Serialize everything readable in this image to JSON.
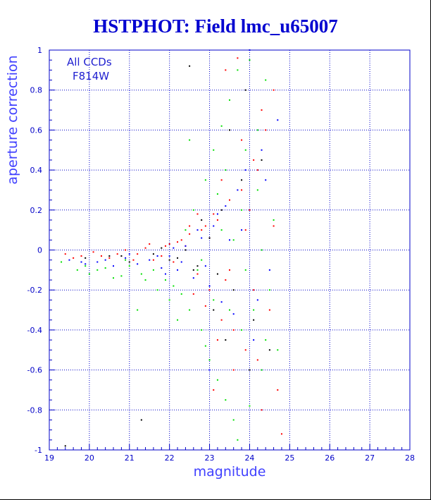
{
  "chart_data": {
    "type": "scatter",
    "title": "HSTPHOT: Field lmc_u65007",
    "xlabel": "magnitude",
    "ylabel": "aperture correction",
    "xlim": [
      19,
      28
    ],
    "ylim": [
      -1,
      1
    ],
    "x_ticks": [
      "19",
      "20",
      "21",
      "22",
      "23",
      "24",
      "25",
      "26",
      "27",
      "28"
    ],
    "y_ticks": [
      "-1",
      "-0.8",
      "-0.6",
      "-0.4",
      "-0.2",
      "0",
      "0.2",
      "0.4",
      "0.6",
      "0.8",
      "1"
    ],
    "grid": true,
    "annotations": [
      "All CCDs",
      "F814W"
    ],
    "series": [
      {
        "color": "#ff0000",
        "points": [
          [
            19.4,
            -0.02
          ],
          [
            19.8,
            -0.03
          ],
          [
            20.1,
            -0.01
          ],
          [
            20.5,
            -0.04
          ],
          [
            20.9,
            0.0
          ],
          [
            21.2,
            -0.02
          ],
          [
            21.4,
            0.01
          ],
          [
            21.6,
            -0.05
          ],
          [
            21.9,
            0.02
          ],
          [
            22.1,
            -0.06
          ],
          [
            22.3,
            0.05
          ],
          [
            22.5,
            0.08
          ],
          [
            22.7,
            -0.12
          ],
          [
            22.9,
            0.12
          ],
          [
            23.0,
            -0.2
          ],
          [
            23.2,
            0.15
          ],
          [
            23.3,
            -0.35
          ],
          [
            23.5,
            0.25
          ],
          [
            23.6,
            -0.4
          ],
          [
            23.8,
            0.3
          ],
          [
            23.9,
            -0.5
          ],
          [
            24.1,
            0.45
          ],
          [
            24.2,
            -0.55
          ],
          [
            24.4,
            0.6
          ],
          [
            24.6,
            0.8
          ],
          [
            24.7,
            -0.7
          ],
          [
            23.1,
            0.18
          ],
          [
            23.4,
            -0.15
          ],
          [
            22.8,
            0.1
          ],
          [
            22.6,
            -0.22
          ],
          [
            23.7,
            0.96
          ],
          [
            24.3,
            0.7
          ],
          [
            24.8,
            -0.92
          ],
          [
            23.6,
            -0.6
          ],
          [
            22.4,
            0.02
          ],
          [
            21.8,
            -0.03
          ],
          [
            20.7,
            -0.02
          ],
          [
            22.2,
            0.04
          ],
          [
            23.0,
            0.06
          ],
          [
            23.9,
            0.1
          ],
          [
            24.5,
            -0.3
          ],
          [
            24.0,
            0.2
          ],
          [
            23.3,
            0.35
          ],
          [
            22.9,
            -0.28
          ],
          [
            24.2,
            0.4
          ],
          [
            23.5,
            -0.1
          ],
          [
            22.0,
            0.03
          ],
          [
            21.1,
            -0.05
          ],
          [
            20.3,
            -0.03
          ],
          [
            19.6,
            -0.04
          ],
          [
            23.8,
            0.55
          ],
          [
            24.1,
            -0.2
          ],
          [
            23.2,
            -0.45
          ],
          [
            22.5,
            0.12
          ],
          [
            24.6,
            0.12
          ],
          [
            23.4,
            0.9
          ],
          [
            24.3,
            -0.8
          ],
          [
            22.7,
            0.18
          ],
          [
            23.1,
            -0.7
          ],
          [
            21.5,
            0.03
          ]
        ]
      },
      {
        "color": "#00e000",
        "points": [
          [
            19.3,
            -0.06
          ],
          [
            19.7,
            -0.1
          ],
          [
            20.0,
            -0.12
          ],
          [
            20.4,
            -0.09
          ],
          [
            20.8,
            -0.13
          ],
          [
            21.0,
            -0.08
          ],
          [
            21.3,
            -0.12
          ],
          [
            21.6,
            -0.1
          ],
          [
            21.9,
            -0.15
          ],
          [
            22.1,
            -0.18
          ],
          [
            22.3,
            -0.22
          ],
          [
            22.5,
            -0.3
          ],
          [
            22.6,
            0.2
          ],
          [
            22.8,
            -0.4
          ],
          [
            22.9,
            0.35
          ],
          [
            23.0,
            -0.55
          ],
          [
            23.1,
            0.5
          ],
          [
            23.2,
            -0.65
          ],
          [
            23.3,
            0.62
          ],
          [
            23.4,
            -0.75
          ],
          [
            23.5,
            0.75
          ],
          [
            23.6,
            -0.85
          ],
          [
            23.7,
            0.9
          ],
          [
            23.8,
            -0.4
          ],
          [
            23.9,
            0.5
          ],
          [
            24.0,
            0.95
          ],
          [
            24.1,
            -0.3
          ],
          [
            24.2,
            0.3
          ],
          [
            24.3,
            -0.6
          ],
          [
            24.4,
            0.85
          ],
          [
            24.5,
            -0.2
          ],
          [
            24.6,
            0.15
          ],
          [
            24.7,
            -0.5
          ],
          [
            20.9,
            -0.05
          ],
          [
            21.7,
            -0.2
          ],
          [
            22.2,
            -0.35
          ],
          [
            22.4,
            0.1
          ],
          [
            22.7,
            -0.1
          ],
          [
            23.3,
            0.1
          ],
          [
            23.6,
            0.05
          ],
          [
            23.9,
            -0.1
          ],
          [
            24.2,
            0.6
          ],
          [
            22.0,
            -0.25
          ],
          [
            21.4,
            -0.15
          ],
          [
            20.6,
            -0.14
          ],
          [
            19.9,
            -0.08
          ],
          [
            23.1,
            -0.25
          ],
          [
            22.9,
            -0.48
          ],
          [
            23.4,
            0.4
          ],
          [
            24.0,
            -0.78
          ],
          [
            23.8,
            0.2
          ],
          [
            22.5,
            0.55
          ],
          [
            21.2,
            -0.3
          ],
          [
            20.2,
            -0.1
          ],
          [
            24.3,
            0.0
          ],
          [
            23.5,
            -0.3
          ],
          [
            22.8,
            -0.05
          ],
          [
            23.2,
            0.28
          ],
          [
            24.4,
            -0.45
          ],
          [
            23.7,
            -0.95
          ]
        ]
      },
      {
        "color": "#0000ff",
        "points": [
          [
            19.5,
            -0.05
          ],
          [
            19.9,
            -0.07
          ],
          [
            20.2,
            -0.06
          ],
          [
            20.6,
            -0.08
          ],
          [
            20.9,
            -0.04
          ],
          [
            21.2,
            -0.07
          ],
          [
            21.5,
            -0.05
          ],
          [
            21.8,
            -0.09
          ],
          [
            22.0,
            -0.03
          ],
          [
            22.2,
            -0.1
          ],
          [
            22.4,
            0.02
          ],
          [
            22.6,
            -0.14
          ],
          [
            22.8,
            0.06
          ],
          [
            23.0,
            -0.18
          ],
          [
            23.1,
            0.12
          ],
          [
            23.3,
            -0.26
          ],
          [
            23.4,
            0.22
          ],
          [
            23.6,
            -0.32
          ],
          [
            23.7,
            0.3
          ],
          [
            23.9,
            0.4
          ],
          [
            24.0,
            1.0
          ],
          [
            24.1,
            -0.45
          ],
          [
            24.3,
            0.5
          ],
          [
            24.5,
            -0.1
          ],
          [
            24.7,
            0.65
          ],
          [
            21.0,
            -0.02
          ],
          [
            21.7,
            -0.03
          ],
          [
            22.3,
            -0.06
          ],
          [
            22.9,
            -0.08
          ],
          [
            23.5,
            0.05
          ],
          [
            24.2,
            -0.25
          ],
          [
            23.2,
            0.18
          ],
          [
            22.1,
            0.01
          ],
          [
            20.4,
            -0.05
          ],
          [
            19.8,
            -0.06
          ],
          [
            23.8,
            0.1
          ],
          [
            24.4,
            0.35
          ],
          [
            23.0,
            -0.6
          ],
          [
            22.7,
            0.1
          ],
          [
            21.9,
            -0.12
          ]
        ]
      },
      {
        "color": "#000000",
        "points": [
          [
            19.4,
            -0.98
          ],
          [
            19.9,
            -0.04
          ],
          [
            20.5,
            -0.03
          ],
          [
            21.0,
            -0.06
          ],
          [
            21.3,
            -0.85
          ],
          [
            21.6,
            -0.02
          ],
          [
            22.0,
            -0.05
          ],
          [
            22.4,
            0.0
          ],
          [
            22.5,
            0.92
          ],
          [
            22.7,
            -0.08
          ],
          [
            23.0,
            0.06
          ],
          [
            23.2,
            -0.12
          ],
          [
            23.3,
            0.2
          ],
          [
            23.6,
            -0.2
          ],
          [
            23.8,
            0.35
          ],
          [
            24.1,
            -0.35
          ],
          [
            24.3,
            0.45
          ],
          [
            23.1,
            -0.3
          ],
          [
            22.8,
            0.15
          ],
          [
            22.2,
            -0.04
          ],
          [
            24.0,
            -0.6
          ],
          [
            23.5,
            0.6
          ],
          [
            21.8,
            0.01
          ],
          [
            20.8,
            -0.03
          ],
          [
            23.9,
            0.8
          ],
          [
            24.5,
            -0.5
          ],
          [
            22.6,
            -0.1
          ],
          [
            23.4,
            -0.45
          ]
        ]
      }
    ]
  }
}
